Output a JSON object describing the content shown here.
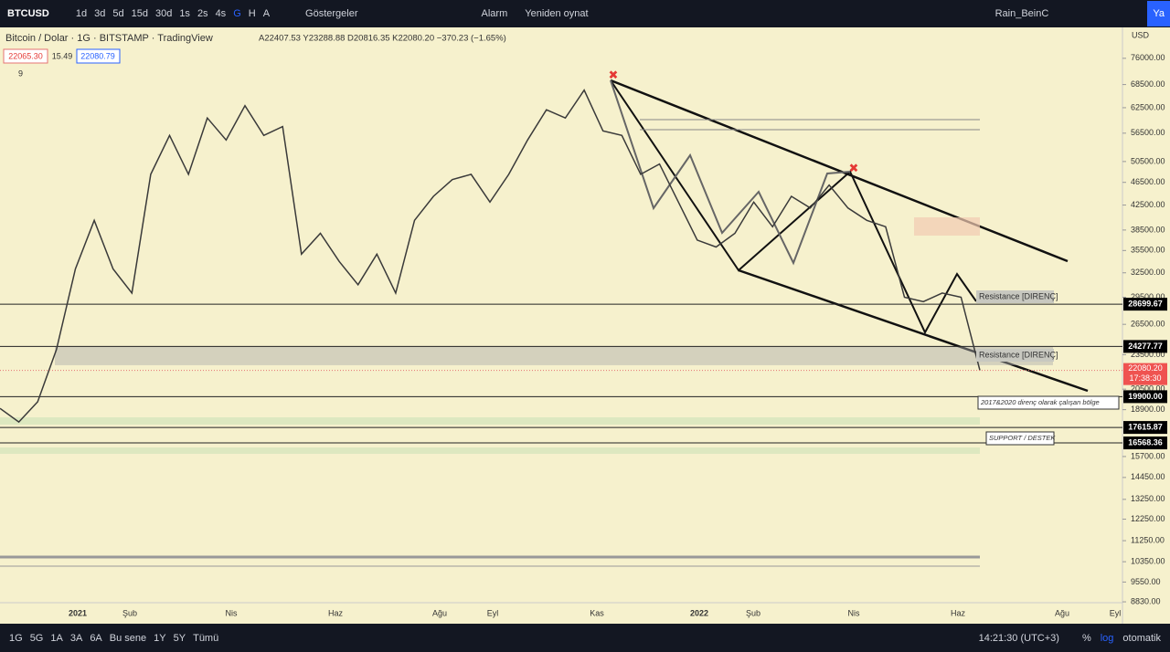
{
  "toolbar": {
    "symbol": "BTCUSD",
    "intervals": [
      "1d",
      "3d",
      "5d",
      "15d",
      "30d",
      "1s",
      "2s",
      "4s",
      "G",
      "H",
      "A"
    ],
    "indicators": "Göstergeler",
    "alert": "Alarm",
    "replay": "Yeniden oynat",
    "layout": "Rain_BeinC",
    "publish": "Ya"
  },
  "header": {
    "title": "Bitcoin / Dolar · 1G · BITSTAMP · TradingView",
    "ohlc": "A22407.53 Y23288.88 D20816.35 K22080.20 −370.23 (−1.65%)",
    "sell": "22065.30",
    "spread": "15.49",
    "buy": "22080.79",
    "indicator_count": "9",
    "currency": "USD"
  },
  "chart_data": {
    "type": "line",
    "log_scale": true,
    "color": "#3a3a3a",
    "values": [
      19000,
      18000,
      19500,
      24000,
      33000,
      40000,
      33000,
      30000,
      48000,
      56000,
      48000,
      60000,
      55000,
      63000,
      56000,
      58000,
      35000,
      38000,
      34000,
      31000,
      35000,
      30000,
      40000,
      44000,
      47000,
      48000,
      43000,
      48000,
      55000,
      62000,
      60000,
      67000,
      57000,
      56000,
      48000,
      50000,
      43000,
      37000,
      36000,
      38000,
      43000,
      39000,
      44000,
      42000,
      46000,
      42000,
      40000,
      39000,
      29500,
      29000,
      30000,
      29500,
      22080.2
    ],
    "ylim": [
      8800,
      85900
    ],
    "yticks": [
      {
        "value": 76000,
        "label": "76000.00"
      },
      {
        "value": 68500,
        "label": "68500.00"
      },
      {
        "value": 62500,
        "label": "62500.00"
      },
      {
        "value": 56500,
        "label": "56500.00"
      },
      {
        "value": 50500,
        "label": "50500.00"
      },
      {
        "value": 46500,
        "label": "46500.00"
      },
      {
        "value": 42500,
        "label": "42500.00"
      },
      {
        "value": 38500,
        "label": "38500.00"
      },
      {
        "value": 35500,
        "label": "35500.00"
      },
      {
        "value": 32500,
        "label": "32500.00"
      },
      {
        "value": 29500,
        "label": "29500.00"
      },
      {
        "value": 26500,
        "label": "26500.00"
      },
      {
        "value": 23500,
        "label": "23500.00"
      },
      {
        "value": 20500,
        "label": "20500.00"
      },
      {
        "value": 18900,
        "label": "18900.00"
      },
      {
        "value": 15700,
        "label": "15700.00"
      },
      {
        "value": 14450,
        "label": "14450.00"
      },
      {
        "value": 13250,
        "label": "13250.00"
      },
      {
        "value": 12250,
        "label": "12250.00"
      },
      {
        "value": 11250,
        "label": "11250.00"
      },
      {
        "value": 10350,
        "label": "10350.00"
      },
      {
        "value": 9550,
        "label": "9550.00"
      },
      {
        "value": 8830,
        "label": "8830.00"
      }
    ],
    "price_lines": [
      28699.67,
      24277.77,
      {
        "value": 19900,
        "label": "19900.00"
      },
      17615.87,
      16568.36
    ],
    "current_price": {
      "value": 22080.2,
      "label": "22080.20",
      "countdown": "17:38:30"
    },
    "zone": [
      22540,
      24277.77
    ],
    "time_labels": [
      "2021",
      "Şub",
      "Nis",
      "Haz",
      "Ağu",
      "Eyl",
      "Kas",
      "2022",
      "Şub",
      "Nis",
      "Haz",
      "Ağu",
      "Eyl"
    ],
    "annotations": [
      "Resistance [DIRENÇ]",
      "Resistance [DIRENÇ]",
      "2017&2020 direnç olarak çalışan bölge",
      "SUPPORT / DESTEK"
    ]
  },
  "footer": {
    "ranges": [
      "1G",
      "5G",
      "1A",
      "3A",
      "6A",
      "Bu sene",
      "1Y",
      "5Y",
      "Tümü"
    ],
    "clock": "14:21:30 (UTC+3)",
    "percent": "%",
    "log": "log",
    "auto": "otomatik"
  }
}
